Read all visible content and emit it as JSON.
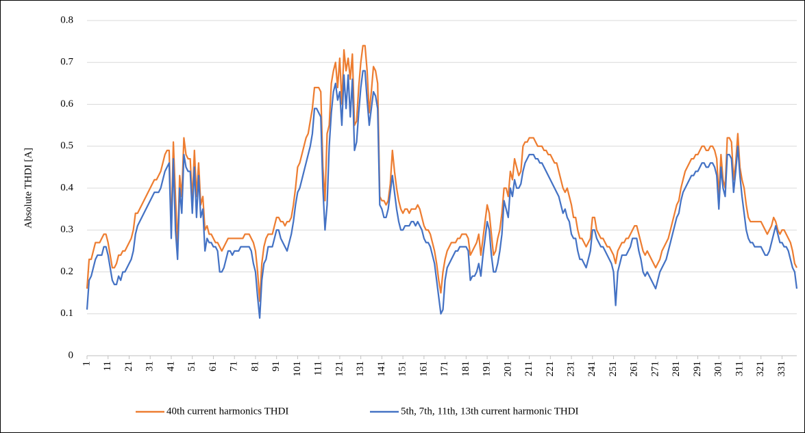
{
  "chart_data": {
    "type": "line",
    "y_label": "Absolute THDI [A]",
    "ylim": [
      0,
      0.8
    ],
    "yticks": [
      0,
      0.1,
      0.2,
      0.3,
      0.4,
      0.5,
      0.6,
      0.7,
      0.8
    ],
    "grid": true,
    "xlim": [
      1,
      338
    ],
    "xticks": [
      1,
      11,
      21,
      31,
      41,
      51,
      61,
      71,
      81,
      91,
      101,
      111,
      121,
      131,
      141,
      151,
      161,
      171,
      181,
      191,
      201,
      211,
      221,
      231,
      241,
      251,
      261,
      271,
      281,
      291,
      301,
      311,
      321,
      331
    ],
    "legend": "bottom",
    "x": [
      1,
      2,
      3,
      4,
      5,
      6,
      7,
      8,
      9,
      10,
      11,
      12,
      13,
      14,
      15,
      16,
      17,
      18,
      19,
      20,
      21,
      22,
      23,
      24,
      25,
      26,
      27,
      28,
      29,
      30,
      31,
      32,
      33,
      34,
      35,
      36,
      37,
      38,
      39,
      40,
      41,
      42,
      43,
      44,
      45,
      46,
      47,
      48,
      49,
      50,
      51,
      52,
      53,
      54,
      55,
      56,
      57,
      58,
      59,
      60,
      61,
      62,
      63,
      64,
      65,
      66,
      67,
      68,
      69,
      70,
      71,
      72,
      73,
      74,
      75,
      76,
      77,
      78,
      79,
      80,
      81,
      82,
      83,
      84,
      85,
      86,
      87,
      88,
      89,
      90,
      91,
      92,
      93,
      94,
      95,
      96,
      97,
      98,
      99,
      100,
      101,
      102,
      103,
      104,
      105,
      106,
      107,
      108,
      109,
      110,
      111,
      112,
      113,
      114,
      115,
      116,
      117,
      118,
      119,
      120,
      121,
      122,
      123,
      124,
      125,
      126,
      127,
      128,
      129,
      130,
      131,
      132,
      133,
      134,
      135,
      136,
      137,
      138,
      139,
      140,
      141,
      142,
      143,
      144,
      145,
      146,
      147,
      148,
      149,
      150,
      151,
      152,
      153,
      154,
      155,
      156,
      157,
      158,
      159,
      160,
      161,
      162,
      163,
      164,
      165,
      166,
      167,
      168,
      169,
      170,
      171,
      172,
      173,
      174,
      175,
      176,
      177,
      178,
      179,
      180,
      181,
      182,
      183,
      184,
      185,
      186,
      187,
      188,
      189,
      190,
      191,
      192,
      193,
      194,
      195,
      196,
      197,
      198,
      199,
      200,
      201,
      202,
      203,
      204,
      205,
      206,
      207,
      208,
      209,
      210,
      211,
      212,
      213,
      214,
      215,
      216,
      217,
      218,
      219,
      220,
      221,
      222,
      223,
      224,
      225,
      226,
      227,
      228,
      229,
      230,
      231,
      232,
      233,
      234,
      235,
      236,
      237,
      238,
      239,
      240,
      241,
      242,
      243,
      244,
      245,
      246,
      247,
      248,
      249,
      250,
      251,
      252,
      253,
      254,
      255,
      256,
      257,
      258,
      259,
      260,
      261,
      262,
      263,
      264,
      265,
      266,
      267,
      268,
      269,
      270,
      271,
      272,
      273,
      274,
      275,
      276,
      277,
      278,
      279,
      280,
      281,
      282,
      283,
      284,
      285,
      286,
      287,
      288,
      289,
      290,
      291,
      292,
      293,
      294,
      295,
      296,
      297,
      298,
      299,
      300,
      301,
      302,
      303,
      304,
      305,
      306,
      307,
      308,
      309,
      310,
      311,
      312,
      313,
      314,
      315,
      316,
      317,
      318,
      319,
      320,
      321,
      322,
      323,
      324,
      325,
      326,
      327,
      328,
      329,
      330,
      331,
      332,
      333,
      334,
      335,
      336,
      337,
      338
    ],
    "series": [
      {
        "name": "40th current harmonics THDI",
        "color": "#ed7d31",
        "values": [
          0.16,
          0.23,
          0.23,
          0.25,
          0.27,
          0.27,
          0.27,
          0.28,
          0.29,
          0.29,
          0.27,
          0.24,
          0.21,
          0.21,
          0.22,
          0.24,
          0.24,
          0.25,
          0.25,
          0.26,
          0.27,
          0.28,
          0.3,
          0.34,
          0.34,
          0.35,
          0.36,
          0.37,
          0.38,
          0.39,
          0.4,
          0.41,
          0.42,
          0.42,
          0.43,
          0.44,
          0.46,
          0.48,
          0.49,
          0.49,
          0.3,
          0.51,
          0.38,
          0.26,
          0.43,
          0.38,
          0.52,
          0.48,
          0.47,
          0.47,
          0.37,
          0.49,
          0.38,
          0.46,
          0.36,
          0.38,
          0.3,
          0.31,
          0.29,
          0.29,
          0.28,
          0.27,
          0.27,
          0.26,
          0.25,
          0.26,
          0.27,
          0.28,
          0.28,
          0.28,
          0.28,
          0.28,
          0.28,
          0.28,
          0.28,
          0.29,
          0.29,
          0.29,
          0.28,
          0.27,
          0.25,
          0.2,
          0.13,
          0.22,
          0.26,
          0.28,
          0.29,
          0.29,
          0.29,
          0.31,
          0.33,
          0.33,
          0.32,
          0.32,
          0.31,
          0.32,
          0.32,
          0.33,
          0.36,
          0.4,
          0.45,
          0.46,
          0.48,
          0.5,
          0.52,
          0.53,
          0.56,
          0.59,
          0.64,
          0.64,
          0.64,
          0.63,
          0.45,
          0.37,
          0.53,
          0.55,
          0.65,
          0.68,
          0.7,
          0.64,
          0.71,
          0.6,
          0.73,
          0.68,
          0.71,
          0.66,
          0.72,
          0.55,
          0.56,
          0.64,
          0.7,
          0.74,
          0.74,
          0.68,
          0.58,
          0.63,
          0.69,
          0.68,
          0.65,
          0.38,
          0.37,
          0.37,
          0.36,
          0.37,
          0.41,
          0.49,
          0.44,
          0.4,
          0.37,
          0.35,
          0.34,
          0.35,
          0.35,
          0.34,
          0.35,
          0.35,
          0.35,
          0.36,
          0.35,
          0.33,
          0.31,
          0.3,
          0.3,
          0.29,
          0.27,
          0.25,
          0.22,
          0.18,
          0.15,
          0.2,
          0.23,
          0.25,
          0.26,
          0.27,
          0.27,
          0.27,
          0.28,
          0.28,
          0.29,
          0.29,
          0.29,
          0.28,
          0.24,
          0.25,
          0.26,
          0.27,
          0.29,
          0.24,
          0.28,
          0.32,
          0.36,
          0.34,
          0.29,
          0.24,
          0.25,
          0.28,
          0.3,
          0.34,
          0.4,
          0.4,
          0.38,
          0.44,
          0.42,
          0.47,
          0.45,
          0.43,
          0.44,
          0.5,
          0.51,
          0.51,
          0.52,
          0.52,
          0.52,
          0.51,
          0.5,
          0.5,
          0.5,
          0.49,
          0.49,
          0.48,
          0.48,
          0.47,
          0.46,
          0.46,
          0.44,
          0.42,
          0.4,
          0.39,
          0.4,
          0.38,
          0.36,
          0.33,
          0.33,
          0.3,
          0.28,
          0.28,
          0.27,
          0.26,
          0.27,
          0.28,
          0.33,
          0.33,
          0.3,
          0.29,
          0.28,
          0.28,
          0.27,
          0.26,
          0.26,
          0.25,
          0.24,
          0.22,
          0.25,
          0.26,
          0.27,
          0.27,
          0.28,
          0.28,
          0.29,
          0.3,
          0.31,
          0.31,
          0.29,
          0.27,
          0.25,
          0.24,
          0.25,
          0.24,
          0.23,
          0.22,
          0.21,
          0.22,
          0.23,
          0.25,
          0.26,
          0.27,
          0.28,
          0.3,
          0.32,
          0.34,
          0.36,
          0.37,
          0.4,
          0.42,
          0.44,
          0.45,
          0.46,
          0.47,
          0.47,
          0.48,
          0.48,
          0.49,
          0.5,
          0.5,
          0.49,
          0.49,
          0.5,
          0.5,
          0.49,
          0.47,
          0.38,
          0.48,
          0.42,
          0.4,
          0.52,
          0.52,
          0.51,
          0.42,
          0.46,
          0.53,
          0.45,
          0.42,
          0.4,
          0.36,
          0.33,
          0.32,
          0.32,
          0.32,
          0.32,
          0.32,
          0.32,
          0.31,
          0.3,
          0.29,
          0.3,
          0.31,
          0.33,
          0.32,
          0.3,
          0.29,
          0.3,
          0.3,
          0.29,
          0.28,
          0.27,
          0.25,
          0.22,
          0.21
        ]
      },
      {
        "name": "5th, 7th, 11th, 13th current harmonic THDI",
        "color": "#4472c4",
        "values": [
          0.11,
          0.18,
          0.19,
          0.21,
          0.23,
          0.24,
          0.24,
          0.24,
          0.26,
          0.26,
          0.24,
          0.21,
          0.18,
          0.17,
          0.17,
          0.19,
          0.18,
          0.2,
          0.2,
          0.21,
          0.22,
          0.23,
          0.25,
          0.29,
          0.31,
          0.32,
          0.33,
          0.34,
          0.35,
          0.36,
          0.37,
          0.38,
          0.39,
          0.39,
          0.39,
          0.4,
          0.42,
          0.44,
          0.45,
          0.46,
          0.28,
          0.47,
          0.3,
          0.23,
          0.4,
          0.34,
          0.48,
          0.45,
          0.44,
          0.44,
          0.34,
          0.45,
          0.33,
          0.43,
          0.33,
          0.35,
          0.25,
          0.28,
          0.27,
          0.27,
          0.26,
          0.26,
          0.25,
          0.2,
          0.2,
          0.21,
          0.23,
          0.25,
          0.25,
          0.24,
          0.25,
          0.25,
          0.25,
          0.26,
          0.26,
          0.26,
          0.26,
          0.26,
          0.25,
          0.22,
          0.2,
          0.14,
          0.09,
          0.18,
          0.22,
          0.23,
          0.26,
          0.26,
          0.26,
          0.28,
          0.3,
          0.3,
          0.28,
          0.27,
          0.26,
          0.25,
          0.27,
          0.29,
          0.32,
          0.36,
          0.39,
          0.4,
          0.42,
          0.44,
          0.46,
          0.48,
          0.5,
          0.53,
          0.59,
          0.59,
          0.58,
          0.57,
          0.4,
          0.3,
          0.36,
          0.5,
          0.58,
          0.63,
          0.65,
          0.61,
          0.63,
          0.55,
          0.67,
          0.59,
          0.67,
          0.57,
          0.66,
          0.49,
          0.51,
          0.58,
          0.64,
          0.68,
          0.68,
          0.61,
          0.55,
          0.59,
          0.63,
          0.62,
          0.59,
          0.36,
          0.35,
          0.33,
          0.33,
          0.35,
          0.39,
          0.43,
          0.39,
          0.35,
          0.32,
          0.3,
          0.3,
          0.31,
          0.31,
          0.31,
          0.32,
          0.32,
          0.31,
          0.32,
          0.31,
          0.3,
          0.28,
          0.27,
          0.27,
          0.26,
          0.24,
          0.22,
          0.18,
          0.14,
          0.1,
          0.11,
          0.18,
          0.21,
          0.22,
          0.23,
          0.24,
          0.25,
          0.25,
          0.26,
          0.26,
          0.26,
          0.26,
          0.25,
          0.18,
          0.19,
          0.19,
          0.2,
          0.22,
          0.19,
          0.24,
          0.28,
          0.32,
          0.3,
          0.24,
          0.2,
          0.2,
          0.22,
          0.25,
          0.29,
          0.37,
          0.35,
          0.33,
          0.4,
          0.38,
          0.42,
          0.4,
          0.4,
          0.41,
          0.44,
          0.46,
          0.47,
          0.48,
          0.48,
          0.48,
          0.47,
          0.47,
          0.46,
          0.46,
          0.45,
          0.44,
          0.43,
          0.42,
          0.41,
          0.4,
          0.39,
          0.38,
          0.36,
          0.34,
          0.35,
          0.33,
          0.32,
          0.29,
          0.28,
          0.28,
          0.25,
          0.23,
          0.23,
          0.22,
          0.21,
          0.23,
          0.25,
          0.3,
          0.3,
          0.28,
          0.27,
          0.26,
          0.26,
          0.25,
          0.24,
          0.23,
          0.22,
          0.2,
          0.12,
          0.2,
          0.22,
          0.24,
          0.24,
          0.24,
          0.25,
          0.26,
          0.28,
          0.28,
          0.28,
          0.25,
          0.23,
          0.2,
          0.19,
          0.2,
          0.19,
          0.18,
          0.17,
          0.16,
          0.18,
          0.2,
          0.21,
          0.22,
          0.23,
          0.25,
          0.27,
          0.29,
          0.31,
          0.33,
          0.34,
          0.37,
          0.39,
          0.4,
          0.41,
          0.42,
          0.43,
          0.43,
          0.44,
          0.44,
          0.45,
          0.46,
          0.46,
          0.45,
          0.45,
          0.46,
          0.46,
          0.45,
          0.43,
          0.35,
          0.45,
          0.4,
          0.38,
          0.48,
          0.48,
          0.47,
          0.39,
          0.44,
          0.5,
          0.43,
          0.38,
          0.34,
          0.3,
          0.28,
          0.27,
          0.27,
          0.26,
          0.26,
          0.26,
          0.26,
          0.25,
          0.24,
          0.24,
          0.25,
          0.27,
          0.29,
          0.31,
          0.29,
          0.27,
          0.27,
          0.26,
          0.26,
          0.25,
          0.23,
          0.21,
          0.2,
          0.16
        ]
      }
    ]
  }
}
